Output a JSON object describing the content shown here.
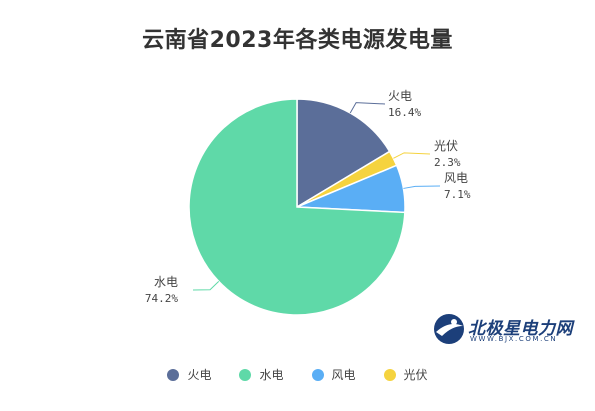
{
  "chart_data": {
    "type": "pie",
    "title": "云南省2023年各类电源发电量",
    "slices": [
      {
        "name": "火电",
        "value": 16.4,
        "label": "16.4%",
        "color": "#5b6e99"
      },
      {
        "name": "光伏",
        "value": 2.3,
        "label": "2.3%",
        "color": "#f5d33f"
      },
      {
        "name": "风电",
        "value": 7.1,
        "label": "7.1%",
        "color": "#5aaef5"
      },
      {
        "name": "水电",
        "value": 74.2,
        "label": "74.2%",
        "color": "#5fd9a8"
      }
    ],
    "legend": {
      "position": "bottom",
      "items": [
        {
          "name": "火电",
          "color": "#5b6e99"
        },
        {
          "name": "水电",
          "color": "#5fd9a8"
        },
        {
          "name": "风电",
          "color": "#5aaef5"
        },
        {
          "name": "光伏",
          "color": "#f5d33f"
        }
      ]
    }
  },
  "watermark": {
    "brand": "北极星电力网",
    "url": "WWW.BJX.COM.CN",
    "logo_icon": "globe-swirl-icon"
  }
}
